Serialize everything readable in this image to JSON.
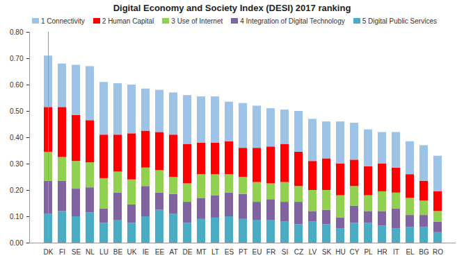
{
  "chart_data": {
    "type": "bar",
    "stacked": true,
    "grid": false,
    "title": "Digital Economy and Society Index (DESI) 2017 ranking",
    "categories": [
      "DK",
      "FI",
      "SE",
      "NL",
      "LU",
      "BE",
      "UK",
      "IE",
      "EE",
      "AT",
      "DE",
      "MT",
      "LT",
      "ES",
      "PT",
      "EU",
      "FR",
      "SI",
      "CZ",
      "LV",
      "SK",
      "HU",
      "CY",
      "PL",
      "HR",
      "IT",
      "EL",
      "BG",
      "RO"
    ],
    "series": [
      {
        "name": "1 Connectivity",
        "color": "#9dc3e6",
        "values": [
          0.195,
          0.165,
          0.19,
          0.205,
          0.2,
          0.195,
          0.185,
          0.16,
          0.16,
          0.16,
          0.185,
          0.175,
          0.175,
          0.15,
          0.17,
          0.16,
          0.145,
          0.13,
          0.155,
          0.16,
          0.14,
          0.16,
          0.14,
          0.14,
          0.12,
          0.135,
          0.125,
          0.135,
          0.135
        ]
      },
      {
        "name": "2 Human Capital",
        "color": "#ff0000",
        "values": [
          0.17,
          0.19,
          0.175,
          0.16,
          0.165,
          0.14,
          0.175,
          0.14,
          0.145,
          0.16,
          0.15,
          0.12,
          0.12,
          0.125,
          0.11,
          0.13,
          0.14,
          0.145,
          0.13,
          0.11,
          0.12,
          0.12,
          0.1,
          0.11,
          0.105,
          0.095,
          0.09,
          0.075,
          0.075
        ]
      },
      {
        "name": "3 Use of Internet",
        "color": "#92d050",
        "values": [
          0.11,
          0.09,
          0.105,
          0.095,
          0.115,
          0.08,
          0.095,
          0.07,
          0.085,
          0.065,
          0.07,
          0.09,
          0.08,
          0.07,
          0.065,
          0.075,
          0.06,
          0.075,
          0.06,
          0.08,
          0.075,
          0.085,
          0.075,
          0.06,
          0.075,
          0.06,
          0.065,
          0.055,
          0.04
        ]
      },
      {
        "name": "4 Integration of Digital Technology",
        "color": "#8064a2",
        "values": [
          0.125,
          0.115,
          0.105,
          0.095,
          0.055,
          0.105,
          0.07,
          0.115,
          0.065,
          0.075,
          0.08,
          0.08,
          0.085,
          0.09,
          0.095,
          0.07,
          0.08,
          0.075,
          0.085,
          0.04,
          0.055,
          0.04,
          0.065,
          0.045,
          0.055,
          0.075,
          0.045,
          0.045,
          0.04
        ]
      },
      {
        "name": "5 Digital Public Services",
        "color": "#4bacc6",
        "values": [
          0.11,
          0.12,
          0.1,
          0.115,
          0.075,
          0.085,
          0.075,
          0.1,
          0.125,
          0.11,
          0.075,
          0.09,
          0.095,
          0.1,
          0.09,
          0.085,
          0.085,
          0.08,
          0.07,
          0.08,
          0.07,
          0.055,
          0.075,
          0.075,
          0.065,
          0.055,
          0.06,
          0.06,
          0.04
        ]
      }
    ],
    "ylim": [
      0,
      0.8
    ],
    "yticks": [
      {
        "value": 0,
        "label": "0.00"
      },
      {
        "value": 0.1,
        "label": "0.10"
      },
      {
        "value": 0.2,
        "label": "0.20"
      },
      {
        "value": 0.3,
        "label": "0.30"
      },
      {
        "value": 0.4,
        "label": "0.40"
      },
      {
        "value": 0.5,
        "label": "0.50"
      },
      {
        "value": 0.6,
        "label": "0.60"
      },
      {
        "value": 0.7,
        "label": "0.70"
      },
      {
        "value": 0.8,
        "label": "0.80"
      }
    ]
  }
}
